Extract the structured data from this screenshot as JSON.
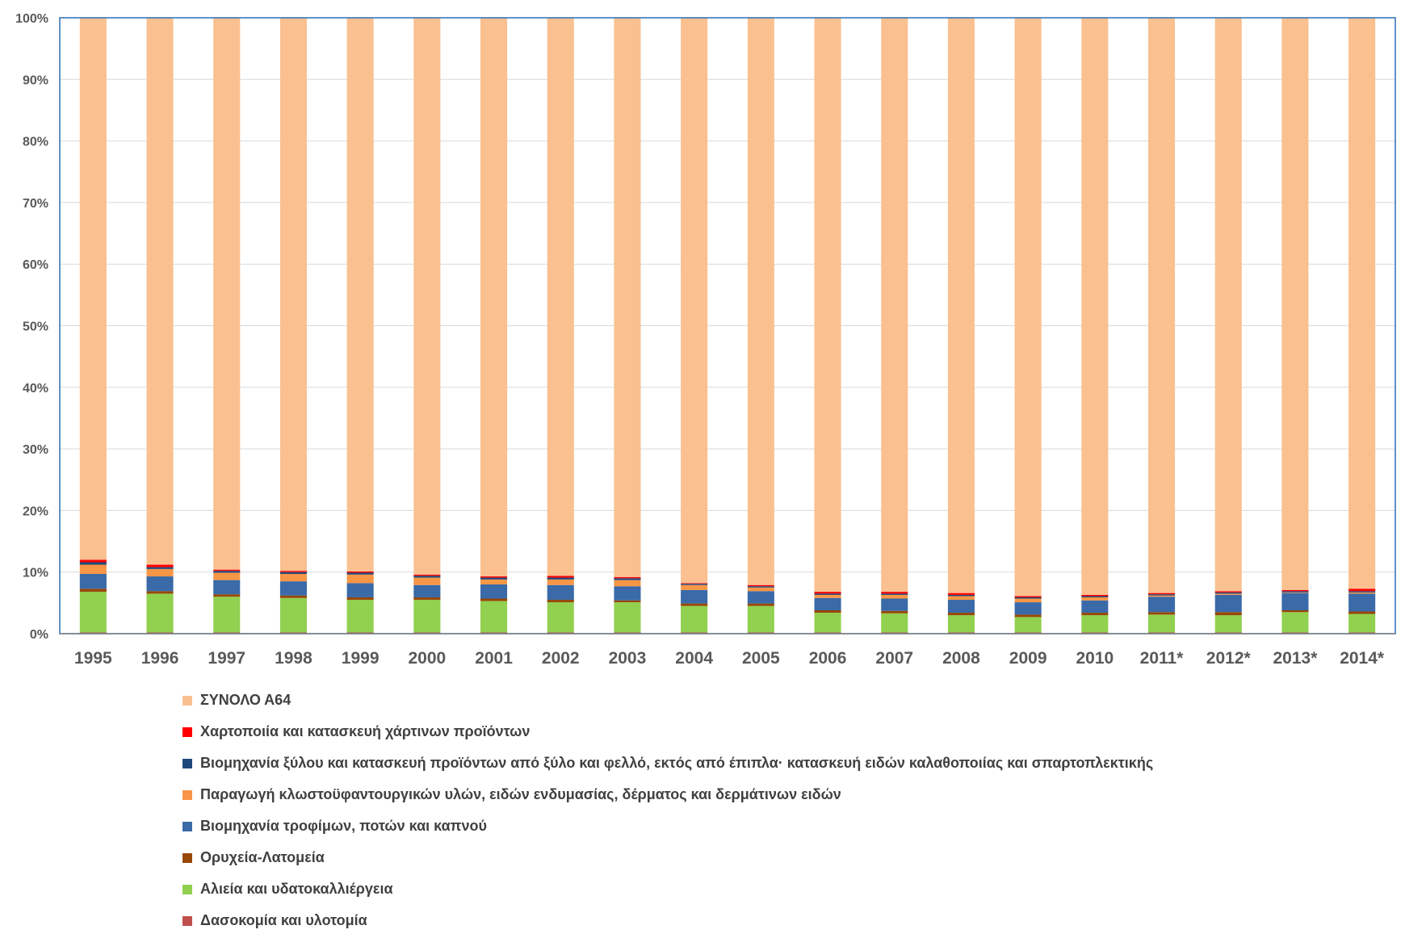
{
  "chart_data": {
    "type": "bar",
    "stacked": true,
    "normalized": true,
    "categories": [
      "1995",
      "1996",
      "1997",
      "1998",
      "1999",
      "2000",
      "2001",
      "2002",
      "2003",
      "2004",
      "2005",
      "2006",
      "2007",
      "2008",
      "2009",
      "2010",
      "2011*",
      "2012*",
      "2013*",
      "2014*"
    ],
    "ylim": [
      0,
      100
    ],
    "yticks": [
      "0%",
      "10%",
      "20%",
      "30%",
      "40%",
      "50%",
      "60%",
      "70%",
      "80%",
      "90%",
      "100%"
    ],
    "grid": true,
    "legend_position": "bottom-left",
    "series": [
      {
        "name": "Δασοκομία και υλοτομία",
        "color": "#c0504d",
        "values": [
          0.2,
          0.2,
          0.2,
          0.2,
          0.2,
          0.2,
          0.2,
          0.2,
          0.2,
          0.2,
          0.2,
          0.2,
          0.2,
          0.2,
          0.2,
          0.2,
          0.2,
          0.2,
          0.2,
          0.2
        ]
      },
      {
        "name": "Αλιεία και υδατοκαλλιέργεια",
        "color": "#92d050",
        "values": [
          6.6,
          6.3,
          5.8,
          5.6,
          5.3,
          5.3,
          5.1,
          4.9,
          4.9,
          4.3,
          4.3,
          3.2,
          3.1,
          2.8,
          2.5,
          2.8,
          2.9,
          2.8,
          3.3,
          3.0
        ]
      },
      {
        "name": "Ορυχεία-Λατομεία",
        "color": "#974706",
        "values": [
          0.5,
          0.4,
          0.4,
          0.4,
          0.4,
          0.4,
          0.4,
          0.4,
          0.3,
          0.4,
          0.4,
          0.4,
          0.4,
          0.4,
          0.4,
          0.4,
          0.4,
          0.5,
          0.3,
          0.4
        ]
      },
      {
        "name": "Βιομηχανία τροφίμων, ποτών και καπνού",
        "color": "#3a6aa8",
        "values": [
          2.4,
          2.4,
          2.3,
          2.3,
          2.3,
          2.0,
          2.3,
          2.4,
          2.3,
          2.2,
          2.0,
          2.0,
          2.0,
          2.1,
          2.0,
          2.0,
          2.5,
          2.8,
          2.8,
          2.9
        ]
      },
      {
        "name": "Παραγωγή κλωστοϋφαντουργικών υλών, ειδών ενδυμασίας, δέρματος και δερμάτινων ειδών",
        "color": "#f79646",
        "values": [
          1.5,
          1.2,
          1.2,
          1.2,
          1.4,
          1.2,
          0.8,
          0.9,
          1.0,
          0.8,
          0.6,
          0.5,
          0.6,
          0.6,
          0.6,
          0.5,
          0.2,
          0.2,
          0.1,
          0.2
        ]
      },
      {
        "name": "Βιομηχανία ξύλου και κατασκευή προϊόντων από ξύλο και φελλό, εκτός από έπιπλα· κατασκευή ειδών καλαθοποιίας και σπαρτοπλεκτικής",
        "color": "#1f497d",
        "values": [
          0.4,
          0.3,
          0.3,
          0.3,
          0.3,
          0.3,
          0.3,
          0.3,
          0.3,
          0.2,
          0.2,
          0.2,
          0.2,
          0.2,
          0.2,
          0.2,
          0.2,
          0.2,
          0.2,
          0.2
        ]
      },
      {
        "name": "Χαρτοποιία και κατασκευή χάρτινων προϊόντων",
        "color": "#ff0000",
        "values": [
          0.4,
          0.4,
          0.2,
          0.2,
          0.2,
          0.2,
          0.2,
          0.3,
          0.2,
          0.1,
          0.2,
          0.3,
          0.3,
          0.3,
          0.2,
          0.2,
          0.2,
          0.2,
          0.2,
          0.4
        ]
      },
      {
        "name": "ΣΥΝΟΛΟ Α64",
        "color": "#fac090",
        "values": [
          88.0,
          88.8,
          89.6,
          89.8,
          89.9,
          90.4,
          90.7,
          90.6,
          90.8,
          91.8,
          92.1,
          93.2,
          93.2,
          93.4,
          93.9,
          93.7,
          93.4,
          93.1,
          92.9,
          92.7
        ]
      }
    ],
    "legend_order": [
      7,
      6,
      5,
      4,
      3,
      2,
      1,
      0
    ]
  }
}
